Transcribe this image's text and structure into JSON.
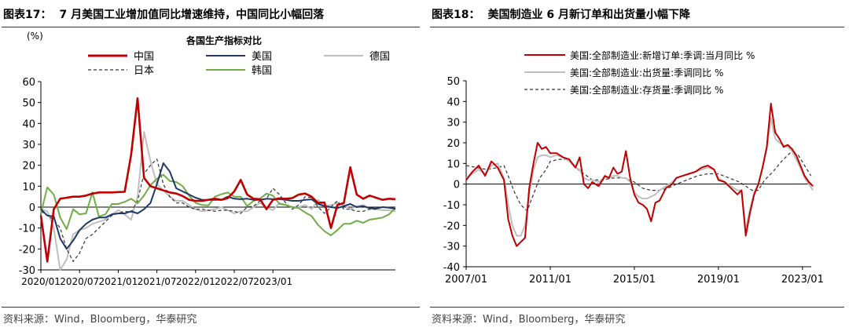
{
  "left": {
    "fig_num": "图表17：",
    "fig_title": "7 月美国工业增加值同比增速维持，中国同比小幅回落",
    "source": "资料来源：Wind，Bloomberg，华泰研究"
  },
  "right": {
    "fig_num": "图表18：",
    "fig_title": "美国制造业 6 月新订单和出货量小幅下降",
    "source": "资料来源：Wind，Bloomberg，华泰研究"
  },
  "chart_data": [
    {
      "type": "line",
      "title": "各国生产指标对比",
      "ylabel": "(%)",
      "ylim": [
        -30,
        60
      ],
      "yticks": [
        -30,
        -20,
        -10,
        0,
        10,
        20,
        30,
        40,
        50,
        60
      ],
      "xticks": [
        "2020/01",
        "2020/07",
        "2021/01",
        "2021/07",
        "2022/01",
        "2022/07",
        "2023/01"
      ],
      "x_start": "2020/01",
      "grid": false,
      "legend": "top",
      "series": [
        {
          "name": "中国",
          "color": "#c00000",
          "style": "solid",
          "values": [
            -4,
            -26,
            -1,
            4,
            4.5,
            5,
            5,
            5.5,
            6.5,
            7,
            7,
            7,
            7.2,
            7.3,
            25,
            52,
            14,
            10,
            9,
            8,
            7,
            6.5,
            5.3,
            3.5,
            3,
            3,
            3.5,
            4,
            3.5,
            4.3,
            7.5,
            13,
            6,
            4,
            3.8,
            -1,
            3.5,
            4.2,
            4,
            4.3,
            6,
            6.5,
            5,
            2,
            2.2,
            -10,
            1,
            2,
            19,
            6,
            4,
            5.5,
            4.5,
            3.5,
            4,
            3.8
          ]
        },
        {
          "name": "美国",
          "color": "#1f3864",
          "style": "solid",
          "values": [
            -1,
            -4,
            -4.5,
            -15,
            -20,
            -16,
            -11,
            -8,
            -6,
            -5,
            -5,
            -3.5,
            -3,
            -3,
            -2,
            -3,
            -1,
            2,
            11,
            21,
            17,
            9,
            7.5,
            6,
            4.5,
            3.5,
            3.5,
            3.5,
            3.5,
            5,
            4,
            3.8,
            4,
            3.5,
            3.5,
            4,
            3.8,
            3.8,
            3.5,
            3,
            3,
            3.5,
            3.7,
            1.5,
            0.5,
            0,
            -0.5,
            0.5,
            1.5,
            0,
            0.5,
            -0.5,
            -0.7,
            0,
            -0.3,
            -0.8
          ]
        },
        {
          "name": "德国",
          "color": "#bfbfbf",
          "style": "solid",
          "values": [
            -1,
            -2,
            -10,
            -30,
            -25,
            -13,
            -11,
            -10,
            -8,
            -7,
            -6,
            -3.5,
            -1.5,
            -3.5,
            -6,
            5,
            36,
            22,
            11,
            8,
            5,
            3,
            3,
            1,
            -1,
            -2,
            -1.5,
            -1,
            0,
            -1.5,
            -3,
            -2,
            -2,
            0,
            2,
            0,
            -1.5,
            2,
            1,
            0,
            0,
            1,
            -1,
            3.5,
            0.5,
            1,
            2,
            1,
            -1,
            0.5,
            1,
            -0.8,
            -1,
            -1.5,
            -1.5,
            -2
          ]
        },
        {
          "name": "日本",
          "color": "#333333",
          "style": "dash",
          "values": [
            -2,
            -4,
            -6,
            -10,
            -20,
            -26,
            -22,
            -15,
            -13,
            -10,
            -7,
            -4,
            -3,
            -2,
            -2.5,
            3,
            16,
            20,
            23,
            11,
            5,
            2,
            2,
            0,
            -1,
            -1,
            -1.5,
            -2,
            -1.5,
            -1.5,
            -2,
            -3,
            0,
            0.5,
            3,
            4,
            9,
            6,
            2,
            -1,
            1,
            5,
            4.5,
            0,
            -3,
            0,
            3,
            -1,
            -1,
            -2,
            -2,
            -1,
            -1,
            0,
            0,
            0
          ]
        },
        {
          "name": "韩国",
          "color": "#70ad47",
          "style": "solid",
          "values": [
            -3,
            9.5,
            6,
            -5,
            -10.5,
            -1,
            -3.5,
            -3,
            7,
            -4.5,
            -3.5,
            1.5,
            1.5,
            2.5,
            4,
            1.8,
            5.5,
            10.5,
            13.5,
            15.5,
            12.5,
            12,
            10,
            5.5,
            2,
            1,
            0.8,
            5,
            6.2,
            7,
            5,
            5,
            0.5,
            3,
            4,
            6.5,
            5.5,
            1.5,
            1,
            0,
            -0.5,
            -2.5,
            -4.3,
            -8.5,
            -11.5,
            -13.5,
            -11,
            -8,
            -8,
            -6.5,
            -7.5,
            -6,
            -5.5,
            -5,
            -3.5,
            -0.5
          ]
        }
      ]
    },
    {
      "type": "line",
      "ylim": [
        -40,
        50
      ],
      "yticks": [
        -40,
        -30,
        -20,
        -10,
        0,
        10,
        20,
        30,
        40,
        50
      ],
      "xticks": [
        "2007/01",
        "2011/01",
        "2015/01",
        "2019/01",
        "2023/01"
      ],
      "x_range": [
        "2007/01",
        "2023/06"
      ],
      "grid": false,
      "legend": "top-right",
      "series": [
        {
          "name": "美国:全部制造业:新增订单:季调:当月同比 %",
          "color": "#c00000",
          "style": "solid",
          "points": [
            [
              2007.0,
              2
            ],
            [
              2007.3,
              6
            ],
            [
              2007.6,
              9
            ],
            [
              2007.9,
              4
            ],
            [
              2008.2,
              11
            ],
            [
              2008.5,
              8
            ],
            [
              2008.8,
              2
            ],
            [
              2009.0,
              -17
            ],
            [
              2009.2,
              -25
            ],
            [
              2009.4,
              -30
            ],
            [
              2009.6,
              -28
            ],
            [
              2009.8,
              -26
            ],
            [
              2010.0,
              -2
            ],
            [
              2010.2,
              10
            ],
            [
              2010.4,
              20
            ],
            [
              2010.6,
              17
            ],
            [
              2010.8,
              18
            ],
            [
              2011.0,
              15
            ],
            [
              2011.3,
              15
            ],
            [
              2011.6,
              13
            ],
            [
              2011.9,
              12
            ],
            [
              2012.2,
              8
            ],
            [
              2012.4,
              13
            ],
            [
              2012.6,
              0
            ],
            [
              2012.8,
              -2
            ],
            [
              2013.0,
              1
            ],
            [
              2013.3,
              -1
            ],
            [
              2013.6,
              4
            ],
            [
              2013.8,
              3
            ],
            [
              2014.0,
              8
            ],
            [
              2014.2,
              5
            ],
            [
              2014.4,
              6
            ],
            [
              2014.6,
              16
            ],
            [
              2014.8,
              3
            ],
            [
              2015.0,
              -5
            ],
            [
              2015.2,
              -9
            ],
            [
              2015.4,
              -10
            ],
            [
              2015.6,
              -12
            ],
            [
              2015.8,
              -18
            ],
            [
              2016.0,
              -9
            ],
            [
              2016.2,
              -8
            ],
            [
              2016.5,
              -2
            ],
            [
              2016.8,
              0
            ],
            [
              2017.0,
              3
            ],
            [
              2017.3,
              4
            ],
            [
              2017.6,
              5
            ],
            [
              2017.9,
              6
            ],
            [
              2018.2,
              8
            ],
            [
              2018.5,
              9
            ],
            [
              2018.8,
              7
            ],
            [
              2019.0,
              2
            ],
            [
              2019.3,
              1
            ],
            [
              2019.6,
              -2
            ],
            [
              2019.9,
              -5
            ],
            [
              2020.1,
              -3
            ],
            [
              2020.3,
              -25
            ],
            [
              2020.5,
              -14
            ],
            [
              2020.7,
              -5
            ],
            [
              2020.9,
              0
            ],
            [
              2021.1,
              8
            ],
            [
              2021.3,
              18
            ],
            [
              2021.5,
              39
            ],
            [
              2021.7,
              25
            ],
            [
              2021.9,
              22
            ],
            [
              2022.1,
              18
            ],
            [
              2022.3,
              19
            ],
            [
              2022.5,
              17
            ],
            [
              2022.7,
              14
            ],
            [
              2022.9,
              9
            ],
            [
              2023.1,
              4
            ],
            [
              2023.3,
              1
            ],
            [
              2023.5,
              -1
            ]
          ]
        },
        {
          "name": "美国:全部制造业:出货量:季调同比 %",
          "color": "#bfbfbf",
          "style": "solid",
          "points": [
            [
              2007.0,
              3
            ],
            [
              2007.3,
              5
            ],
            [
              2007.6,
              7
            ],
            [
              2007.9,
              5
            ],
            [
              2008.2,
              9
            ],
            [
              2008.5,
              10
            ],
            [
              2008.8,
              3
            ],
            [
              2009.0,
              -10
            ],
            [
              2009.2,
              -20
            ],
            [
              2009.4,
              -25
            ],
            [
              2009.6,
              -25
            ],
            [
              2009.8,
              -20
            ],
            [
              2010.0,
              -5
            ],
            [
              2010.2,
              7
            ],
            [
              2010.4,
              13
            ],
            [
              2010.6,
              14
            ],
            [
              2010.8,
              14
            ],
            [
              2011.0,
              13
            ],
            [
              2011.3,
              14
            ],
            [
              2011.6,
              13
            ],
            [
              2011.9,
              11
            ],
            [
              2012.2,
              8
            ],
            [
              2012.4,
              7
            ],
            [
              2012.6,
              3
            ],
            [
              2012.8,
              2
            ],
            [
              2013.0,
              2
            ],
            [
              2013.3,
              1
            ],
            [
              2013.6,
              3
            ],
            [
              2013.8,
              3
            ],
            [
              2014.0,
              4
            ],
            [
              2014.2,
              4
            ],
            [
              2014.4,
              3
            ],
            [
              2014.6,
              3
            ],
            [
              2014.8,
              1
            ],
            [
              2015.0,
              -4
            ],
            [
              2015.2,
              -6
            ],
            [
              2015.4,
              -7
            ],
            [
              2015.6,
              -7
            ],
            [
              2015.8,
              -6
            ],
            [
              2016.0,
              -5
            ],
            [
              2016.2,
              -3
            ],
            [
              2016.5,
              -1
            ],
            [
              2016.8,
              1
            ],
            [
              2017.0,
              3
            ],
            [
              2017.3,
              4
            ],
            [
              2017.6,
              5
            ],
            [
              2017.9,
              6
            ],
            [
              2018.2,
              7
            ],
            [
              2018.5,
              8
            ],
            [
              2018.8,
              7
            ],
            [
              2019.0,
              3
            ],
            [
              2019.3,
              1
            ],
            [
              2019.6,
              -1
            ],
            [
              2019.9,
              -3
            ],
            [
              2020.1,
              -3
            ],
            [
              2020.3,
              -22
            ],
            [
              2020.5,
              -12
            ],
            [
              2020.7,
              -4
            ],
            [
              2020.9,
              0
            ],
            [
              2021.1,
              8
            ],
            [
              2021.3,
              17
            ],
            [
              2021.5,
              32
            ],
            [
              2021.7,
              22
            ],
            [
              2021.9,
              20
            ],
            [
              2022.1,
              19
            ],
            [
              2022.3,
              18
            ],
            [
              2022.5,
              16
            ],
            [
              2022.7,
              12
            ],
            [
              2022.9,
              8
            ],
            [
              2023.1,
              3
            ],
            [
              2023.3,
              0
            ],
            [
              2023.5,
              -3
            ]
          ]
        },
        {
          "name": "美国:全部制造业:存货量:季调同比 %",
          "color": "#333333",
          "style": "dash",
          "points": [
            [
              2007.0,
              9
            ],
            [
              2007.5,
              8
            ],
            [
              2008.0,
              7
            ],
            [
              2008.5,
              8
            ],
            [
              2008.8,
              9
            ],
            [
              2009.0,
              4
            ],
            [
              2009.3,
              -4
            ],
            [
              2009.6,
              -10
            ],
            [
              2009.9,
              -13
            ],
            [
              2010.2,
              -5
            ],
            [
              2010.5,
              3
            ],
            [
              2010.8,
              7
            ],
            [
              2011.0,
              11
            ],
            [
              2011.4,
              12
            ],
            [
              2011.8,
              12
            ],
            [
              2012.2,
              8
            ],
            [
              2012.6,
              5
            ],
            [
              2013.0,
              2
            ],
            [
              2013.5,
              2
            ],
            [
              2014.0,
              3
            ],
            [
              2014.5,
              3
            ],
            [
              2015.0,
              1
            ],
            [
              2015.4,
              -2
            ],
            [
              2015.8,
              -3
            ],
            [
              2016.2,
              -3
            ],
            [
              2016.6,
              -2
            ],
            [
              2017.0,
              0
            ],
            [
              2017.5,
              2
            ],
            [
              2018.0,
              4
            ],
            [
              2018.5,
              5
            ],
            [
              2019.0,
              5
            ],
            [
              2019.5,
              3
            ],
            [
              2020.0,
              1
            ],
            [
              2020.3,
              -1
            ],
            [
              2020.6,
              -3
            ],
            [
              2020.9,
              -3
            ],
            [
              2021.2,
              2
            ],
            [
              2021.6,
              6
            ],
            [
              2022.0,
              11
            ],
            [
              2022.4,
              15
            ],
            [
              2022.8,
              14
            ],
            [
              2023.1,
              9
            ],
            [
              2023.4,
              4
            ]
          ]
        }
      ]
    }
  ]
}
